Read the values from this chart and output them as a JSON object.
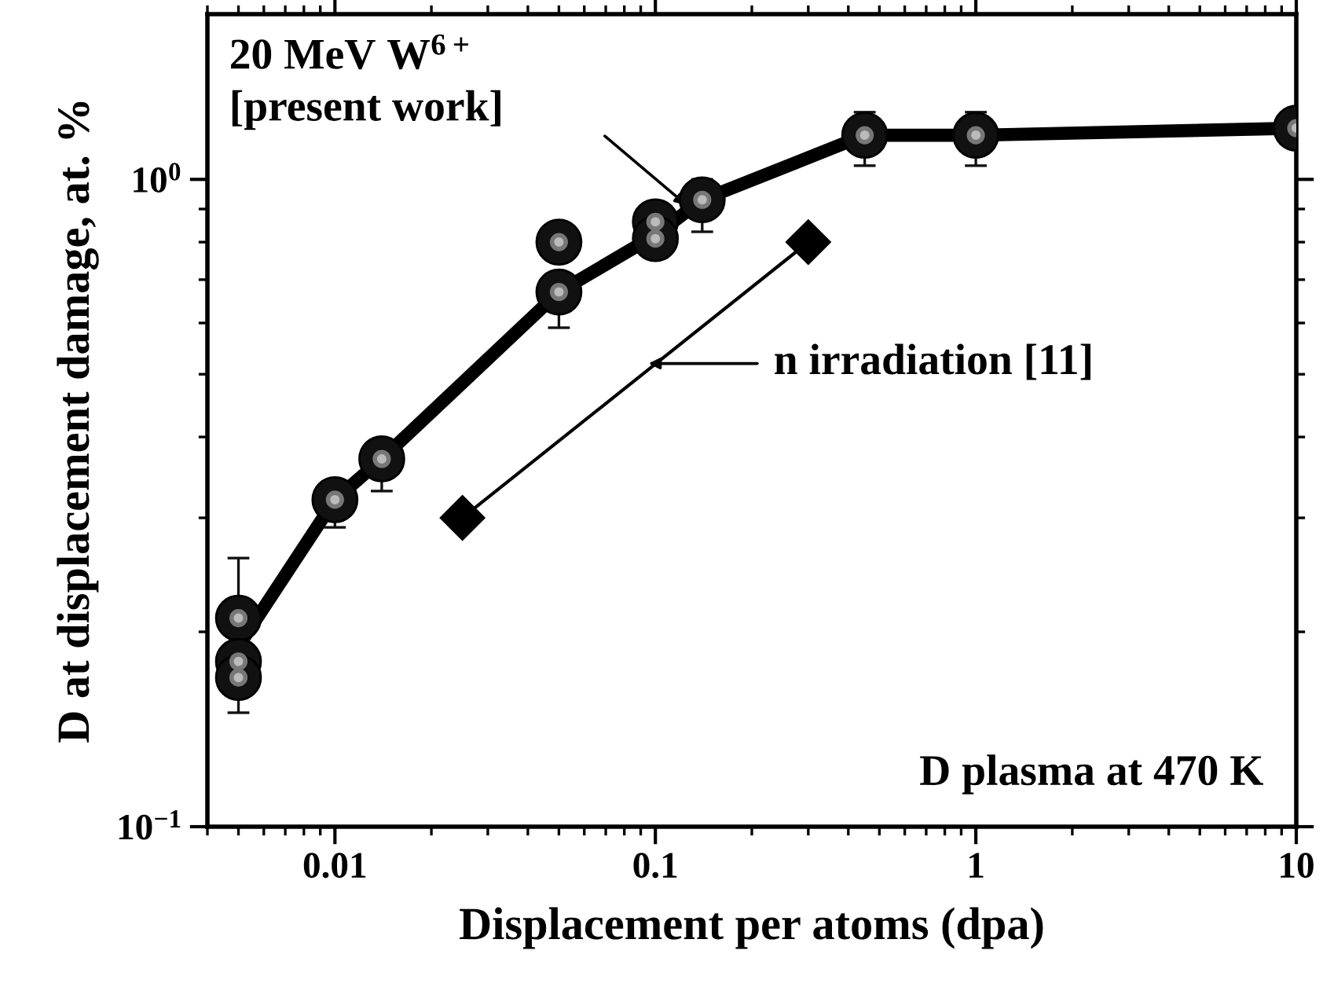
{
  "chart_data": {
    "type": "scatter",
    "xlabel": "Displacement per atoms (dpa)",
    "ylabel": "D at displacement damage, at. %",
    "log": "xy",
    "xlim": [
      0.004,
      10
    ],
    "ylim": [
      0.1,
      1.8
    ],
    "xticks": [
      0.01,
      0.1,
      1,
      10
    ],
    "yticks": [
      {
        "value": 0.1,
        "label": "10$^{−1}$"
      },
      {
        "value": 1,
        "label": "10$^{0}$"
      }
    ],
    "grid": false,
    "legend": false,
    "series": [
      {
        "type": "line",
        "color": "#000000",
        "line_style": "solid",
        "x": [
          0.005,
          0.01,
          0.014,
          0.05,
          0.1,
          0.14,
          0.45,
          1,
          10
        ],
        "values": [
          0.19,
          0.32,
          0.37,
          0.67,
          0.82,
          0.93,
          1.17,
          1.17,
          1.2
        ]
      },
      {
        "color": "#111111",
        "marker": "circle",
        "x": [
          0.005,
          0.005,
          0.005,
          0.01,
          0.014,
          0.05,
          0.05,
          0.1,
          0.1,
          0.14,
          0.45,
          1,
          10
        ],
        "values": [
          0.21,
          0.18,
          0.17,
          0.32,
          0.37,
          0.8,
          0.67,
          0.86,
          0.81,
          0.93,
          1.17,
          1.17,
          1.2
        ],
        "errors": [
          [
            0.21,
            0.26
          ],
          null,
          [
            0.15,
            0.17
          ],
          [
            0.29,
            0.32
          ],
          [
            0.33,
            0.37
          ],
          null,
          [
            0.59,
            0.67
          ],
          null,
          null,
          [
            0.83,
            1.0
          ],
          [
            1.05,
            1.27
          ],
          [
            1.05,
            1.27
          ],
          null
        ]
      },
      {
        "type": "line",
        "color": "#000000",
        "line_style": "solid",
        "marker": "diamond",
        "x": [
          0.025,
          0.3
        ],
        "values": [
          0.3,
          0.8
        ]
      }
    ],
    "annotations": [
      "20 MeV W$^{6+}$\n[present work]",
      "n irradiation [11]",
      "D plasma at 470 K"
    ]
  }
}
